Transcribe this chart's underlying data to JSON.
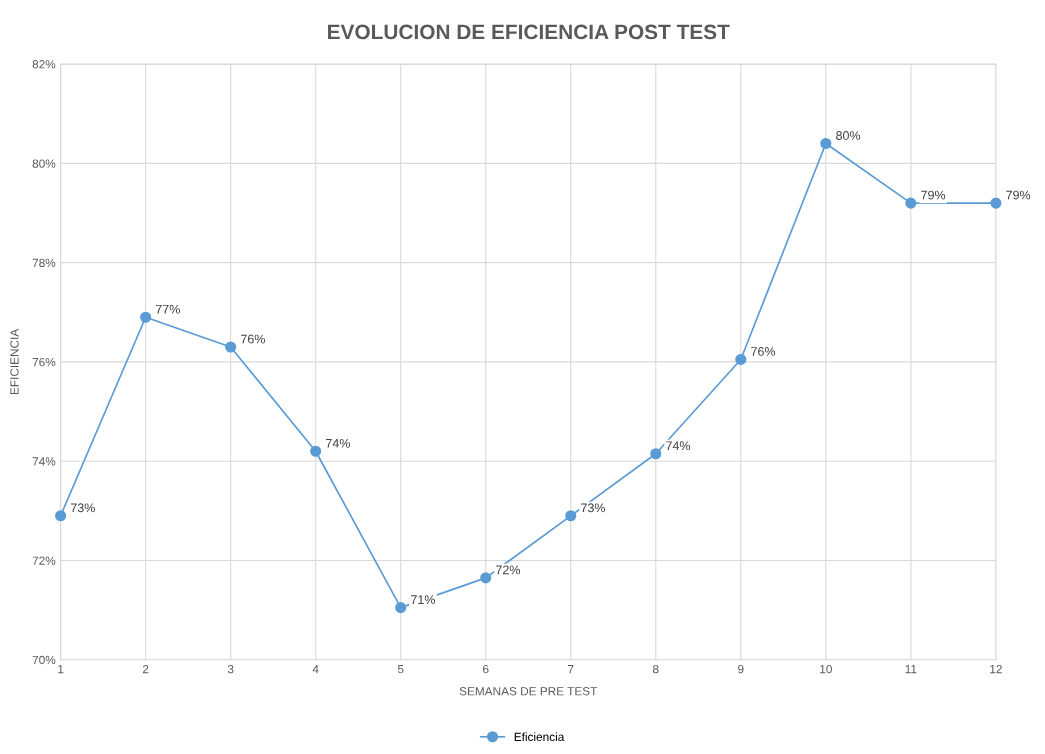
{
  "chart_data": {
    "type": "line",
    "title": "EVOLUCION DE EFICIENCIA POST TEST",
    "xlabel": "SEMANAS DE PRE TEST",
    "ylabel": "EFICIENCIA",
    "x": [
      1,
      2,
      3,
      4,
      5,
      6,
      7,
      8,
      9,
      10,
      11,
      12
    ],
    "series": [
      {
        "name": "Eficiencia",
        "color": "#5b9bd5",
        "values": [
          72.9,
          76.9,
          76.3,
          74.2,
          71.05,
          71.65,
          72.9,
          74.15,
          76.05,
          80.4,
          79.2,
          79.2
        ],
        "value_labels": [
          "73%",
          "77%",
          "76%",
          "74%",
          "71%",
          "72%",
          "73%",
          "74%",
          "76%",
          "80%",
          "79%",
          "79%"
        ]
      }
    ],
    "xlim": [
      1,
      12
    ],
    "xticks": [
      1,
      2,
      3,
      4,
      5,
      6,
      7,
      8,
      9,
      10,
      11,
      12
    ],
    "ylim": [
      70,
      82
    ],
    "yticks": [
      {
        "value": 70,
        "label": "70%"
      },
      {
        "value": 72,
        "label": "72%"
      },
      {
        "value": 74,
        "label": "74%"
      },
      {
        "value": 76,
        "label": "76%"
      },
      {
        "value": 78,
        "label": "78%"
      },
      {
        "value": 80,
        "label": "80%"
      },
      {
        "value": 82,
        "label": "82%"
      }
    ],
    "grid": true,
    "legend": "bottom",
    "marker": "circle",
    "line_style": "solid"
  }
}
